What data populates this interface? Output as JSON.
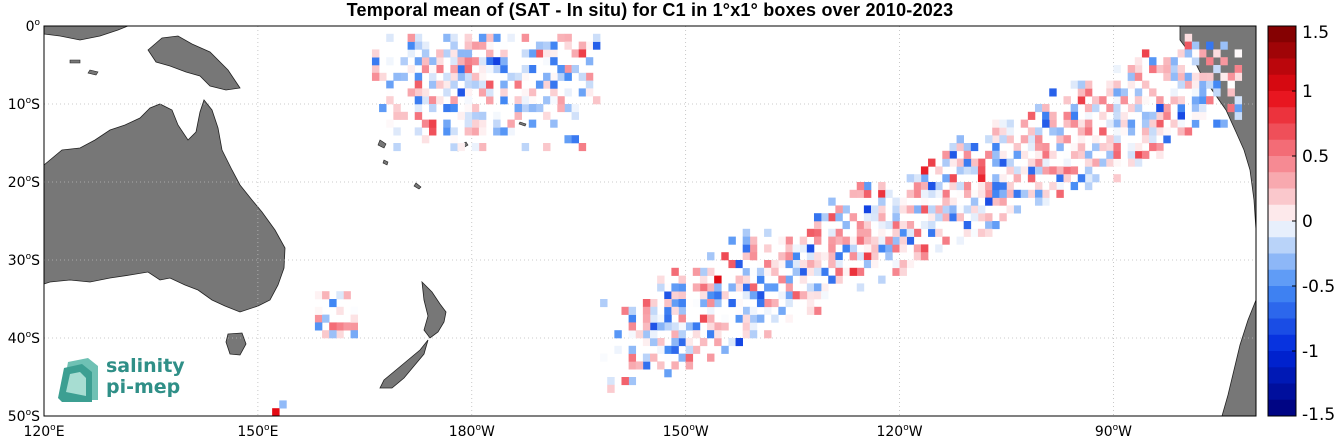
{
  "title": "Temporal mean of (SAT - In situ) for C1 in 1°x1° boxes over 2010-2023",
  "map": {
    "lon_range": [
      120,
      290
    ],
    "lat_range": [
      -50,
      0
    ],
    "lon_ticks": [
      {
        "value": 120,
        "num": "120",
        "hemi": "E"
      },
      {
        "value": 150,
        "num": "150",
        "hemi": "E"
      },
      {
        "value": 180,
        "num": "180",
        "hemi": "W"
      },
      {
        "value": 210,
        "num": "150",
        "hemi": "W"
      },
      {
        "value": 240,
        "num": "120",
        "hemi": "W"
      },
      {
        "value": 270,
        "num": "90",
        "hemi": "W"
      }
    ],
    "lat_ticks": [
      {
        "value": 0,
        "num": "0",
        "hemi": ""
      },
      {
        "value": -10,
        "num": "10",
        "hemi": "S"
      },
      {
        "value": -20,
        "num": "20",
        "hemi": "S"
      },
      {
        "value": -30,
        "num": "30",
        "hemi": "S"
      },
      {
        "value": -40,
        "num": "40",
        "hemi": "S"
      },
      {
        "value": -50,
        "num": "50",
        "hemi": "S"
      }
    ],
    "land_color": "#777777",
    "grid": "dotted"
  },
  "colorbar": {
    "min": -1.5,
    "max": 1.5,
    "ticks": [
      {
        "value": 1.5,
        "label": "1.5"
      },
      {
        "value": 1,
        "label": "1"
      },
      {
        "value": 0.5,
        "label": "0.5"
      },
      {
        "value": 0,
        "label": "0"
      },
      {
        "value": -0.5,
        "label": "-0.5"
      },
      {
        "value": -1,
        "label": "-1"
      },
      {
        "value": -1.5,
        "label": "-1.5"
      }
    ],
    "colormap": "blue-white-red"
  },
  "logo": {
    "line1": "salinity",
    "line2": "pi-mep"
  }
}
